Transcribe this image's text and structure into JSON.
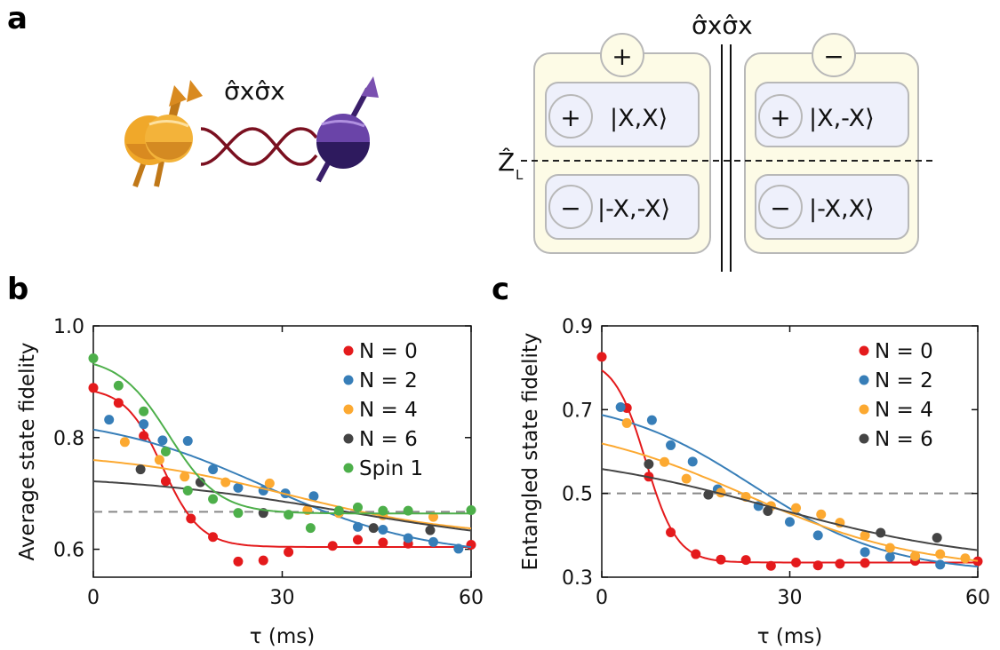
{
  "panels": {
    "a": {
      "letter": "a"
    },
    "b": {
      "letter": "b"
    },
    "c": {
      "letter": "c"
    }
  },
  "diagram": {
    "coupling_label": "σ̂xσ̂x",
    "separator_label": "σ̂xσ̂x",
    "logical_operator": "Ẑ",
    "logical_operator_subscript": "L",
    "left_box": {
      "sign": "+",
      "upper_state": {
        "sign": "+",
        "ket": "|X,X⟩"
      },
      "lower_state": {
        "sign": "−",
        "ket": "|-X,-X⟩"
      }
    },
    "right_box": {
      "sign": "−",
      "upper_state": {
        "sign": "+",
        "ket": "|X,-X⟩"
      },
      "lower_state": {
        "sign": "−",
        "ket": "|-X,X⟩"
      }
    },
    "colors": {
      "spin_gold": "#e8a020",
      "spin_purple": "#4a2a80",
      "coupling": "#7a1020",
      "box_fill": "#fdfbe6",
      "state_fill": "#eef0fb"
    }
  },
  "chart_data": [
    {
      "type": "scatter",
      "panel": "b",
      "xlabel": "τ (ms)",
      "ylabel": "Average state fidelity",
      "xlim": [
        0,
        60
      ],
      "ylim": [
        0.55,
        1.0
      ],
      "xticks": [
        0,
        30,
        60
      ],
      "yticks": [
        0.6,
        0.8,
        1.0
      ],
      "ytick_labels": [
        "0.6",
        "0.8",
        "1.0"
      ],
      "reference_line": 0.667,
      "legend_position": "top-right",
      "series": [
        {
          "name": "N = 0",
          "color": "#e41a1c",
          "points": [
            [
              0,
              0.889
            ],
            [
              4,
              0.862
            ],
            [
              8,
              0.803
            ],
            [
              11.5,
              0.722
            ],
            [
              15.5,
              0.655
            ],
            [
              19,
              0.622
            ],
            [
              23,
              0.578
            ],
            [
              27,
              0.58
            ],
            [
              31,
              0.595
            ],
            [
              38,
              0.606
            ],
            [
              42,
              0.617
            ],
            [
              46,
              0.612
            ],
            [
              50,
              0.61
            ],
            [
              60,
              0.608
            ]
          ],
          "fit": {
            "y0": 0.89,
            "y1": 0.604,
            "t0": 11,
            "w": 3
          }
        },
        {
          "name": "N = 2",
          "color": "#377eb8",
          "points": [
            [
              2.5,
              0.832
            ],
            [
              8,
              0.824
            ],
            [
              11,
              0.795
            ],
            [
              15,
              0.794
            ],
            [
              19,
              0.743
            ],
            [
              23,
              0.71
            ],
            [
              27,
              0.705
            ],
            [
              30.5,
              0.7
            ],
            [
              35,
              0.695
            ],
            [
              39,
              0.665
            ],
            [
              42,
              0.64
            ],
            [
              46,
              0.635
            ],
            [
              50,
              0.62
            ],
            [
              54,
              0.613
            ],
            [
              58,
              0.601
            ]
          ],
          "fit": {
            "y0": 0.843,
            "y1": 0.585,
            "t0": 27,
            "w": 13
          }
        },
        {
          "name": "N = 4",
          "color": "#fca931",
          "points": [
            [
              5,
              0.792
            ],
            [
              10.5,
              0.76
            ],
            [
              14.5,
              0.73
            ],
            [
              21,
              0.72
            ],
            [
              28,
              0.718
            ],
            [
              34,
              0.67
            ],
            [
              39,
              0.665
            ],
            [
              46,
              0.661
            ],
            [
              54,
              0.658
            ]
          ],
          "fit": {
            "y0": 0.775,
            "y1": 0.62,
            "t0": 31,
            "w": 14
          }
        },
        {
          "name": "N = 6",
          "color": "#444444",
          "points": [
            [
              7.5,
              0.743
            ],
            [
              17,
              0.72
            ],
            [
              27,
              0.665
            ],
            [
              44.5,
              0.638
            ],
            [
              53.5,
              0.634
            ]
          ],
          "fit": {
            "y0": 0.735,
            "y1": 0.6,
            "t0": 40,
            "w": 18
          }
        },
        {
          "name": "Spin 1",
          "color": "#4daf4a",
          "points": [
            [
              0,
              0.942
            ],
            [
              4,
              0.893
            ],
            [
              8,
              0.847
            ],
            [
              11.5,
              0.775
            ],
            [
              15,
              0.705
            ],
            [
              19,
              0.69
            ],
            [
              23,
              0.665
            ],
            [
              31,
              0.662
            ],
            [
              34.5,
              0.638
            ],
            [
              39,
              0.669
            ],
            [
              42,
              0.675
            ],
            [
              46,
              0.669
            ],
            [
              50,
              0.669
            ],
            [
              60,
              0.67
            ]
          ],
          "fit": {
            "y0": 0.945,
            "y1": 0.664,
            "t0": 12,
            "w": 4
          }
        }
      ]
    },
    {
      "type": "scatter",
      "panel": "c",
      "xlabel": "τ (ms)",
      "ylabel": "Entangled state fidelity",
      "xlim": [
        0,
        60
      ],
      "ylim": [
        0.3,
        0.9
      ],
      "xticks": [
        0,
        30,
        60
      ],
      "yticks": [
        0.3,
        0.5,
        0.7,
        0.9
      ],
      "ytick_labels": [
        "0.3",
        "0.5",
        "0.7",
        "0.9"
      ],
      "reference_line": 0.5,
      "legend_position": "top-right",
      "series": [
        {
          "name": "N = 0",
          "color": "#e41a1c",
          "points": [
            [
              0,
              0.826
            ],
            [
              4,
              0.704
            ],
            [
              7.5,
              0.54
            ],
            [
              11,
              0.407
            ],
            [
              15,
              0.355
            ],
            [
              19,
              0.342
            ],
            [
              23,
              0.341
            ],
            [
              27,
              0.327
            ],
            [
              31,
              0.335
            ],
            [
              34.5,
              0.328
            ],
            [
              38,
              0.332
            ],
            [
              42,
              0.334
            ],
            [
              50,
              0.339
            ],
            [
              60,
              0.338
            ]
          ],
          "fit": {
            "y0": 0.822,
            "y1": 0.335,
            "t0": 7,
            "w": 2.5
          }
        },
        {
          "name": "N = 2",
          "color": "#377eb8",
          "points": [
            [
              3,
              0.706
            ],
            [
              8,
              0.675
            ],
            [
              11,
              0.615
            ],
            [
              14.5,
              0.576
            ],
            [
              18.5,
              0.51
            ],
            [
              25,
              0.47
            ],
            [
              30,
              0.432
            ],
            [
              34.5,
              0.4
            ],
            [
              42,
              0.36
            ],
            [
              46,
              0.348
            ],
            [
              50,
              0.35
            ],
            [
              54,
              0.33
            ]
          ],
          "fit": {
            "y0": 0.73,
            "y1": 0.31,
            "t0": 24,
            "w": 11
          }
        },
        {
          "name": "N = 4",
          "color": "#fca931",
          "points": [
            [
              4,
              0.668
            ],
            [
              10,
              0.575
            ],
            [
              13.5,
              0.535
            ],
            [
              19,
              0.502
            ],
            [
              23,
              0.492
            ],
            [
              27,
              0.47
            ],
            [
              31,
              0.465
            ],
            [
              35,
              0.45
            ],
            [
              38,
              0.43
            ],
            [
              42,
              0.4
            ],
            [
              46,
              0.37
            ],
            [
              50,
              0.35
            ],
            [
              54,
              0.355
            ],
            [
              58,
              0.345
            ]
          ],
          "fit": {
            "y0": 0.678,
            "y1": 0.315,
            "t0": 23,
            "w": 14
          }
        },
        {
          "name": "N = 6",
          "color": "#444444",
          "points": [
            [
              7.5,
              0.57
            ],
            [
              17,
              0.497
            ],
            [
              26.5,
              0.458
            ],
            [
              44.5,
              0.406
            ],
            [
              53.5,
              0.394
            ]
          ],
          "fit": {
            "y0": 0.605,
            "y1": 0.33,
            "t0": 27,
            "w": 17
          }
        }
      ]
    }
  ]
}
